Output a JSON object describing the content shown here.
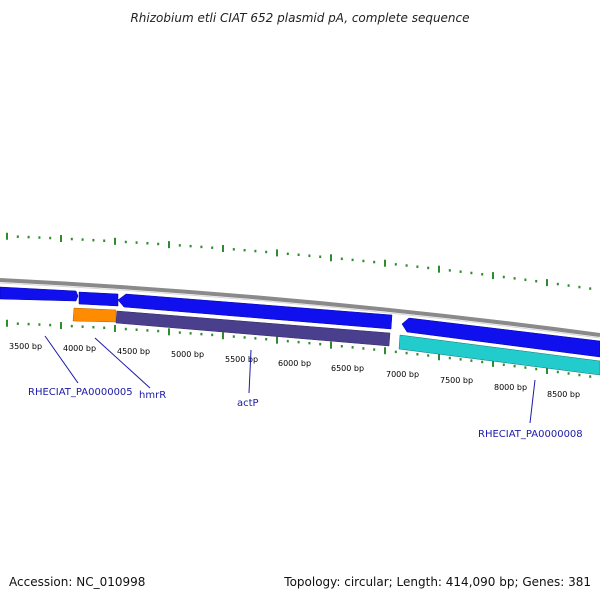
{
  "title": "Rhizobium etli CIAT 652 plasmid pA, complete sequence",
  "footer": {
    "accession": "Accession: NC_010998",
    "stats": "Topology: circular; Length: 414,090 bp; Genes: 381"
  },
  "colors": {
    "tick": "#2e8b2e",
    "backbone": "#8a8a8a",
    "gene_forward": "#1010ee",
    "gene_purple": "#4a3f8c",
    "gene_orange": "#ff8c00",
    "gene_cyan": "#22cccc",
    "label": "#1a1aa6"
  },
  "scale_labels": [
    "3500 bp",
    "4000 bp",
    "4500 bp",
    "5000 bp",
    "5500 bp",
    "6000 bp",
    "6500 bp",
    "7000 bp",
    "7500 bp",
    "8000 bp",
    "8500 bp"
  ],
  "genes": [
    {
      "label": "RHECIAT_PA0000005"
    },
    {
      "label": "hmrR"
    },
    {
      "label": "actP"
    },
    {
      "label": "RHECIAT_PA0000008"
    }
  ]
}
